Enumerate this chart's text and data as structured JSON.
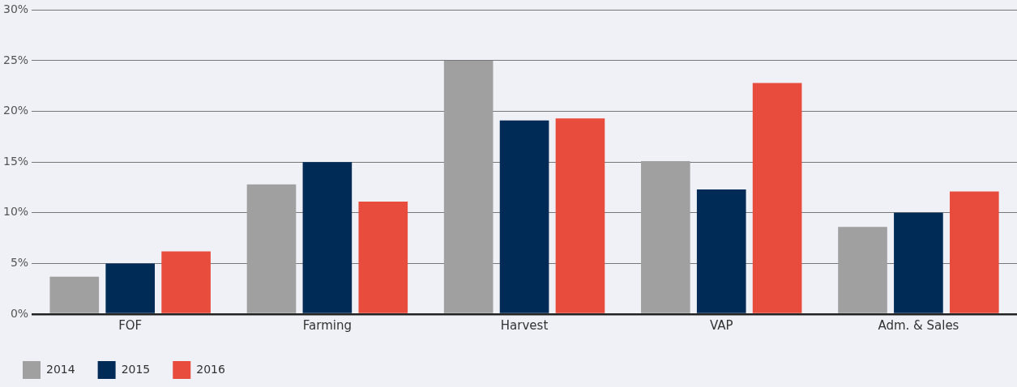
{
  "chart_data": {
    "type": "bar",
    "categories": [
      "FOF",
      "Farming",
      "Harvest",
      "VAP",
      "Adm. & Sales"
    ],
    "series": [
      {
        "name": "2014",
        "color": "#a0a0a0",
        "values": [
          3.7,
          12.8,
          25.0,
          15.1,
          8.6
        ]
      },
      {
        "name": "2015",
        "color": "#002b57",
        "values": [
          5.0,
          15.0,
          19.1,
          12.3,
          10.0
        ]
      },
      {
        "name": "2016",
        "color": "#e84c3d",
        "values": [
          6.2,
          11.1,
          19.3,
          22.8,
          12.1
        ]
      }
    ],
    "ylim": [
      0,
      30
    ],
    "yticks": [
      {
        "value": 0,
        "label": "0%"
      },
      {
        "value": 5,
        "label": "5%"
      },
      {
        "value": 10,
        "label": "10%"
      },
      {
        "value": 15,
        "label": "15%"
      },
      {
        "value": 20,
        "label": "20%"
      },
      {
        "value": 25,
        "label": "25%"
      },
      {
        "value": 30,
        "label": "30%"
      }
    ],
    "grid": "y",
    "legend": "bottom left"
  }
}
